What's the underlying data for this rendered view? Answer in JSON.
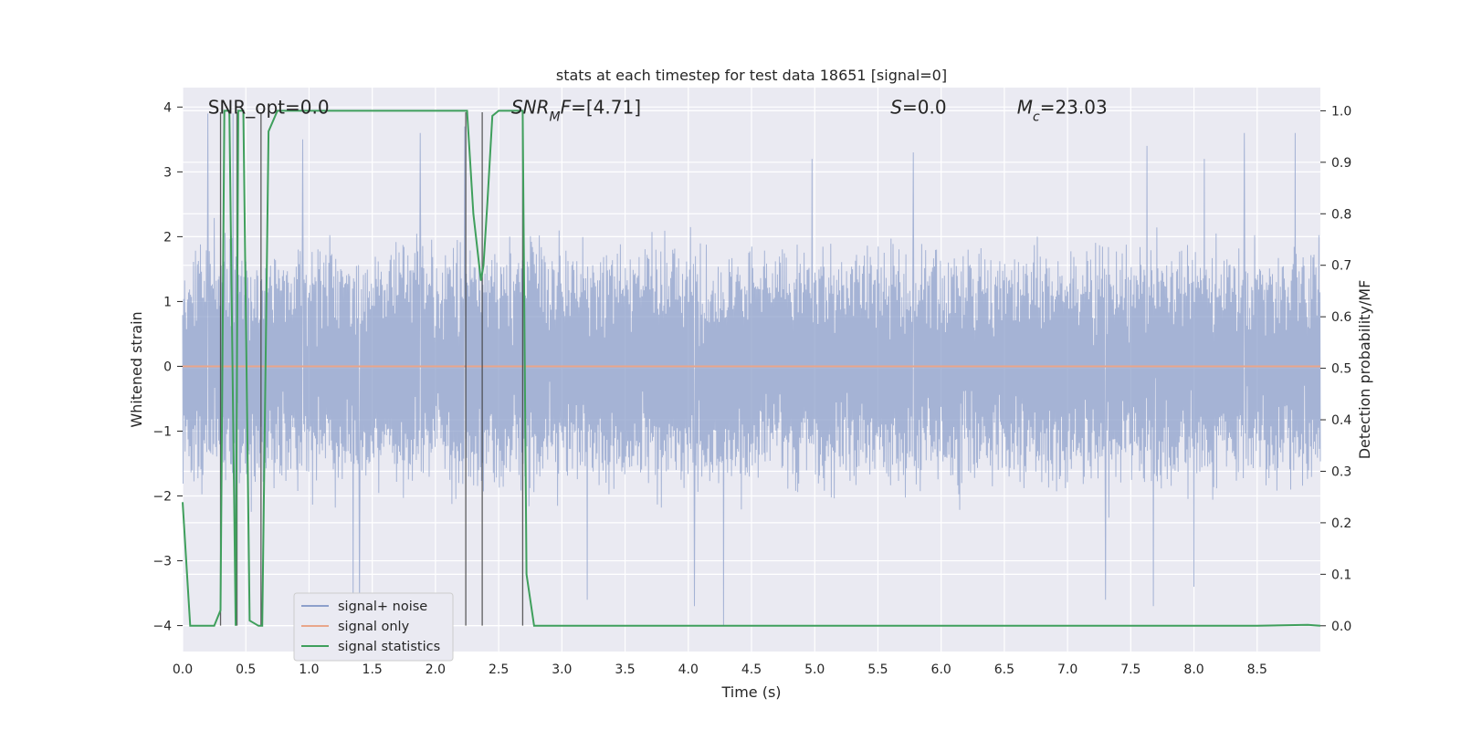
{
  "chart_data": {
    "type": "line",
    "title": "stats at each timestep for test data 18651 [signal=0]",
    "xlabel": "Time (s)",
    "ylabel": "Whitened strain",
    "y2label": "Detection probability/MF",
    "xlim": [
      0,
      9
    ],
    "ylim": [
      -4.4,
      4.3
    ],
    "y2lim": [
      -0.05,
      1.045
    ],
    "grid": true,
    "x_ticks": [
      0.0,
      0.5,
      1.0,
      1.5,
      2.0,
      2.5,
      3.0,
      3.5,
      4.0,
      4.5,
      5.0,
      5.5,
      6.0,
      6.5,
      7.0,
      7.5,
      8.0,
      8.5
    ],
    "x_tick_labels": [
      "0.0",
      "0.5",
      "1.0",
      "1.5",
      "2.0",
      "2.5",
      "3.0",
      "3.5",
      "4.0",
      "4.5",
      "5.0",
      "5.5",
      "6.0",
      "6.5",
      "7.0",
      "7.5",
      "8.0",
      "8.5"
    ],
    "y_ticks": [
      -4,
      -3,
      -2,
      -1,
      0,
      1,
      2,
      3,
      4
    ],
    "y_tick_labels": [
      "−4",
      "−3",
      "−2",
      "−1",
      "0",
      "1",
      "2",
      "3",
      "4"
    ],
    "y2_ticks": [
      0.0,
      0.1,
      0.2,
      0.3,
      0.4,
      0.5,
      0.6,
      0.7,
      0.8,
      0.9,
      1.0
    ],
    "y2_tick_labels": [
      "0.0",
      "0.1",
      "0.2",
      "0.3",
      "0.4",
      "0.5",
      "0.6",
      "0.7",
      "0.8",
      "0.9",
      "1.0"
    ],
    "annotations": [
      {
        "name": "snr-opt",
        "parts": [
          {
            "t": "SNR_opt=0.0",
            "italic": false
          }
        ],
        "x": 0.2,
        "y": 4.0
      },
      {
        "name": "snr-mf",
        "parts": [
          {
            "t": "SNR",
            "italic": true
          },
          {
            "t": "M",
            "italic": true,
            "sub": true
          },
          {
            "t": "F",
            "italic": true
          },
          {
            "t": "=[4.71]",
            "italic": false
          }
        ],
        "x": 2.6,
        "y": 4.0
      },
      {
        "name": "s-value",
        "parts": [
          {
            "t": "S",
            "italic": true
          },
          {
            "t": "=0.0",
            "italic": false
          }
        ],
        "x": 5.6,
        "y": 4.0
      },
      {
        "name": "mc-value",
        "parts": [
          {
            "t": "M",
            "italic": true
          },
          {
            "t": "c",
            "italic": true,
            "sub": true
          },
          {
            "t": "=23.03",
            "italic": false
          }
        ],
        "x": 6.6,
        "y": 4.0
      }
    ],
    "vlines": [
      0.3,
      0.43,
      0.62,
      2.24,
      2.37,
      2.69
    ],
    "legend": {
      "position": "lower-left",
      "entries": [
        {
          "label": "signal+ noise",
          "color": "#8da0cb"
        },
        {
          "label": "signal only",
          "color": "#e9a68a"
        },
        {
          "label": "signal statistics",
          "color": "#3f9f5c"
        }
      ]
    },
    "series": [
      {
        "name": "signal+ noise",
        "axis": "left",
        "color": "#8da0cb",
        "style": "noise",
        "sample_rate_hz": 256,
        "envelope": {
          "upper_typical": 1.6,
          "lower_typical": -1.6
        },
        "peaks": [
          {
            "x": 0.2,
            "y": 3.9
          },
          {
            "x": 0.4,
            "y": 3.9
          },
          {
            "x": 0.95,
            "y": 3.5
          },
          {
            "x": 1.88,
            "y": 3.6
          },
          {
            "x": 2.23,
            "y": 3.7
          },
          {
            "x": 4.98,
            "y": 3.2
          },
          {
            "x": 5.78,
            "y": 3.3
          },
          {
            "x": 8.4,
            "y": 3.6
          },
          {
            "x": 8.8,
            "y": 3.6
          },
          {
            "x": 7.63,
            "y": 3.4
          },
          {
            "x": 8.08,
            "y": 3.2
          }
        ],
        "troughs": [
          {
            "x": 1.35,
            "y": -3.5
          },
          {
            "x": 3.2,
            "y": -3.6
          },
          {
            "x": 4.28,
            "y": -4.0
          },
          {
            "x": 4.05,
            "y": -3.7
          },
          {
            "x": 7.3,
            "y": -3.6
          },
          {
            "x": 7.68,
            "y": -3.7
          },
          {
            "x": 8.0,
            "y": -3.4
          },
          {
            "x": 0.42,
            "y": -3.2
          },
          {
            "x": 1.4,
            "y": -3.7
          }
        ]
      },
      {
        "name": "signal only",
        "axis": "left",
        "color": "#e9a68a",
        "x": [
          0,
          9
        ],
        "y": [
          0,
          0
        ]
      },
      {
        "name": "signal statistics",
        "axis": "right",
        "color": "#3f9f5c",
        "x": [
          0.0,
          0.06,
          0.1,
          0.25,
          0.3,
          0.33,
          0.37,
          0.42,
          0.44,
          0.48,
          0.53,
          0.6,
          0.63,
          0.68,
          0.75,
          0.8,
          2.25,
          2.3,
          2.36,
          2.38,
          2.41,
          2.45,
          2.5,
          2.69,
          2.72,
          2.78,
          2.85,
          8.5,
          8.9,
          9.0
        ],
        "y": [
          0.24,
          0.0,
          0.0,
          0.0,
          0.03,
          1.0,
          1.0,
          0.0,
          1.0,
          1.0,
          0.01,
          0.0,
          0.0,
          0.96,
          1.0,
          1.0,
          1.0,
          0.8,
          0.67,
          0.7,
          0.82,
          0.99,
          1.0,
          1.0,
          0.1,
          0.0,
          0.0,
          0.0,
          0.002,
          0.0
        ]
      }
    ]
  }
}
